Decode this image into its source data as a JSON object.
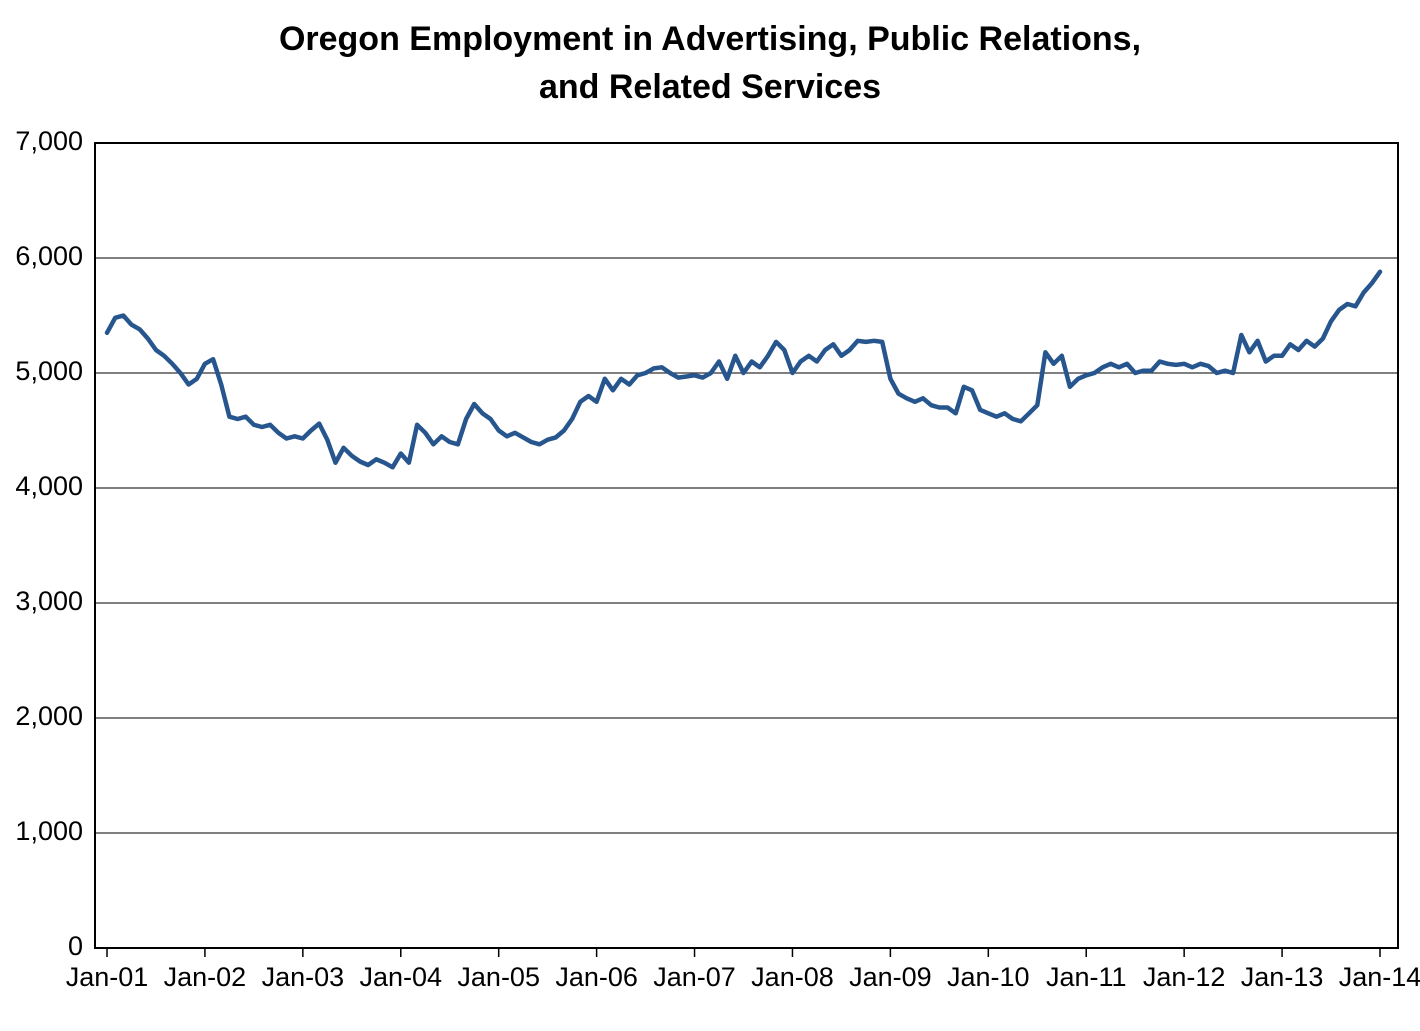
{
  "chart_data": {
    "type": "line",
    "title": "Oregon Employment in Advertising, Public Relations, and Related Services",
    "title_line1": "Oregon Employment in Advertising, Public Relations,",
    "title_line2": "and Related Services",
    "xlabel": "",
    "ylabel": "",
    "ylim": [
      0,
      7000
    ],
    "grid": "horizontal",
    "legend": "none",
    "line_color": "#26568D",
    "axis_color": "#000000",
    "gridline_color": "#333333",
    "y_tick_values": [
      0,
      1000,
      2000,
      3000,
      4000,
      5000,
      6000,
      7000
    ],
    "y_tick_labels": [
      "0",
      "1,000",
      "2,000",
      "3,000",
      "4,000",
      "5,000",
      "6,000",
      "7,000"
    ],
    "x_tick_labels": [
      "Jan-01",
      "Jan-02",
      "Jan-03",
      "Jan-04",
      "Jan-05",
      "Jan-06",
      "Jan-07",
      "Jan-08",
      "Jan-09",
      "Jan-10",
      "Jan-11",
      "Jan-12",
      "Jan-13",
      "Jan-14"
    ],
    "x_frequency": "monthly",
    "x_start": "Jan-01",
    "x_end": "Jan-14",
    "months_per_tick": 12,
    "values": [
      5350,
      5480,
      5500,
      5420,
      5380,
      5300,
      5200,
      5150,
      5080,
      5000,
      4900,
      4950,
      5080,
      5120,
      4900,
      4620,
      4600,
      4620,
      4550,
      4530,
      4550,
      4480,
      4430,
      4450,
      4430,
      4500,
      4560,
      4420,
      4220,
      4350,
      4280,
      4230,
      4200,
      4250,
      4220,
      4180,
      4300,
      4220,
      4550,
      4480,
      4380,
      4450,
      4400,
      4380,
      4600,
      4730,
      4650,
      4600,
      4500,
      4450,
      4480,
      4440,
      4400,
      4380,
      4420,
      4440,
      4500,
      4600,
      4750,
      4800,
      4750,
      4950,
      4850,
      4950,
      4900,
      4980,
      5000,
      5040,
      5050,
      5000,
      4960,
      4970,
      4980,
      4960,
      5000,
      5100,
      4950,
      5150,
      5000,
      5100,
      5050,
      5150,
      5270,
      5200,
      5000,
      5100,
      5150,
      5100,
      5200,
      5250,
      5150,
      5200,
      5280,
      5270,
      5280,
      5270,
      4950,
      4820,
      4780,
      4750,
      4780,
      4720,
      4700,
      4700,
      4650,
      4880,
      4850,
      4680,
      4650,
      4620,
      4650,
      4600,
      4580,
      4650,
      4720,
      5180,
      5080,
      5150,
      4880,
      4950,
      4980,
      5000,
      5050,
      5080,
      5050,
      5080,
      5000,
      5020,
      5020,
      5100,
      5080,
      5070,
      5080,
      5050,
      5080,
      5060,
      5000,
      5020,
      5000,
      5330,
      5180,
      5280,
      5100,
      5150,
      5150,
      5250,
      5200,
      5280,
      5230,
      5300,
      5450,
      5550,
      5600,
      5580,
      5700,
      5780,
      5880
    ]
  }
}
